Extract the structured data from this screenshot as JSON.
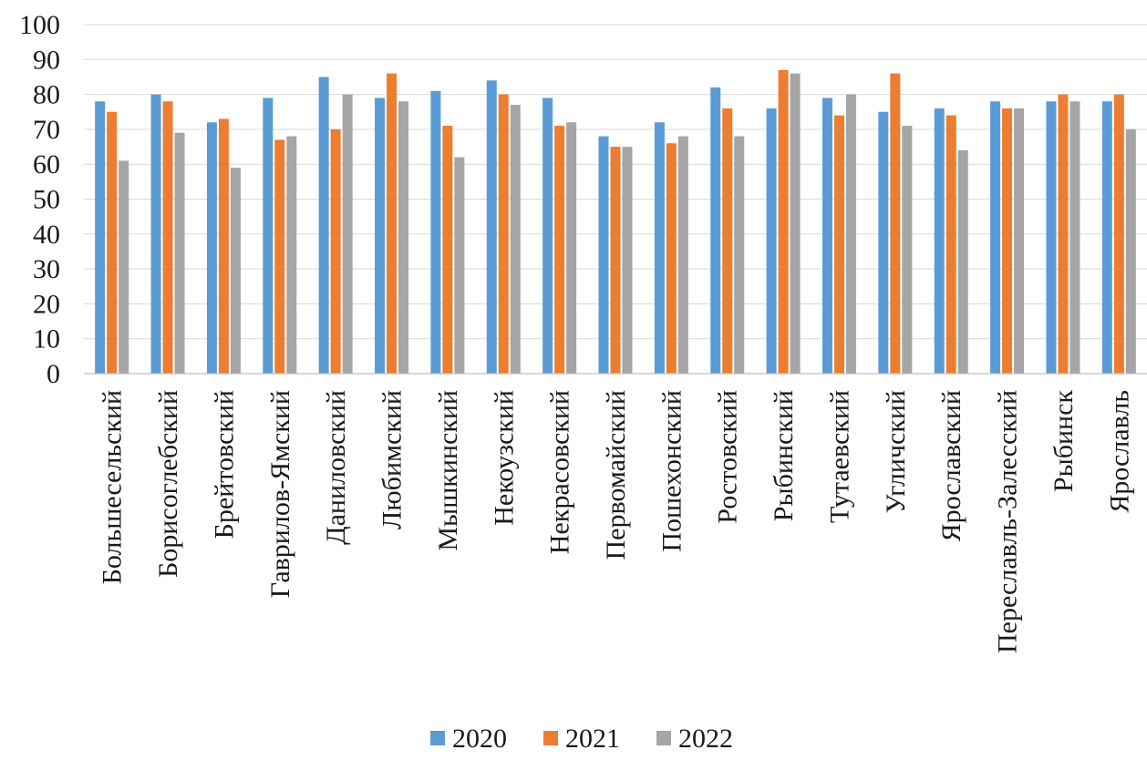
{
  "chart_data": {
    "type": "bar",
    "title": "",
    "xlabel": "",
    "ylabel": "",
    "ylim": [
      0,
      100
    ],
    "yticks": [
      0,
      10,
      20,
      30,
      40,
      50,
      60,
      70,
      80,
      90,
      100
    ],
    "grid": true,
    "legend_position": "bottom",
    "categories": [
      "Большесельский",
      "Борисоглебский",
      "Брейтовский",
      "Гаврилов-Ямский",
      "Даниловский",
      "Любимский",
      "Мышкинский",
      "Некоузский",
      "Некрасовский",
      "Первомайский",
      "Пошехонский",
      "Ростовский",
      "Рыбинский",
      "Тутаевский",
      "Угличский",
      "Ярославский",
      "Переславль-Залесский",
      "Рыбинск",
      "Ярославль"
    ],
    "series": [
      {
        "name": "2020",
        "color": "#5b9bd5",
        "values": [
          78,
          80,
          72,
          79,
          85,
          79,
          81,
          84,
          79,
          68,
          72,
          82,
          76,
          79,
          75,
          76,
          78,
          78,
          78
        ]
      },
      {
        "name": "2021",
        "color": "#ed7d31",
        "values": [
          75,
          78,
          73,
          67,
          70,
          86,
          71,
          80,
          71,
          65,
          66,
          76,
          87,
          74,
          86,
          74,
          76,
          80,
          80
        ]
      },
      {
        "name": "2022",
        "color": "#a5a5a5",
        "values": [
          61,
          69,
          59,
          68,
          80,
          78,
          62,
          77,
          72,
          65,
          68,
          68,
          86,
          80,
          71,
          64,
          76,
          78,
          70
        ]
      }
    ]
  }
}
